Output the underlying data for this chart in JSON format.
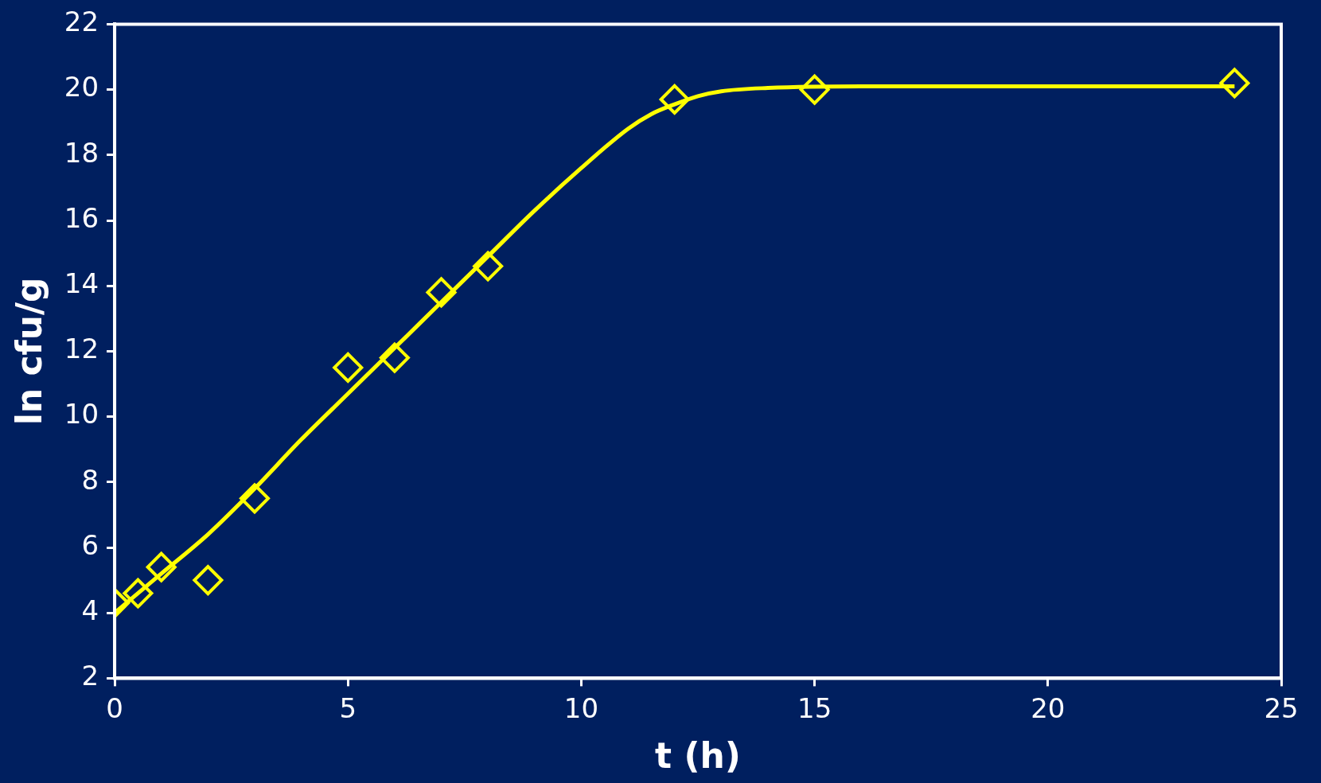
{
  "chart_data": {
    "type": "scatter",
    "xlabel": "t (h)",
    "ylabel": "ln cfu/g",
    "xlim": [
      0,
      25
    ],
    "xticks": [
      0,
      5,
      10,
      15,
      20,
      25
    ],
    "ylim": [
      2,
      22
    ],
    "yticks": [
      2,
      4,
      6,
      8,
      10,
      12,
      14,
      16,
      18,
      20,
      22
    ],
    "grid": false,
    "legend": false,
    "series": [
      {
        "type": "line",
        "marker": "none",
        "line_style": "solid",
        "color": "#ffff00",
        "x": [
          0,
          1,
          2,
          3,
          4,
          5,
          6,
          7,
          8,
          9,
          10,
          11,
          11.5,
          12,
          12.5,
          13,
          14,
          16,
          24
        ],
        "values": [
          4.0,
          5.2,
          6.4,
          7.8,
          9.3,
          10.7,
          12.1,
          13.5,
          14.9,
          16.3,
          17.6,
          18.8,
          19.25,
          19.55,
          19.8,
          19.95,
          20.05,
          20.1,
          20.1
        ]
      },
      {
        "type": "scatter",
        "marker": "diamond",
        "color": "#ffff00",
        "x": [
          0,
          0.5,
          1,
          2,
          3,
          5,
          6,
          7,
          8,
          12,
          15,
          24
        ],
        "values": [
          4.3,
          4.6,
          5.4,
          5.0,
          7.5,
          11.5,
          11.8,
          13.8,
          14.6,
          19.7,
          20.0,
          20.2
        ]
      }
    ]
  }
}
